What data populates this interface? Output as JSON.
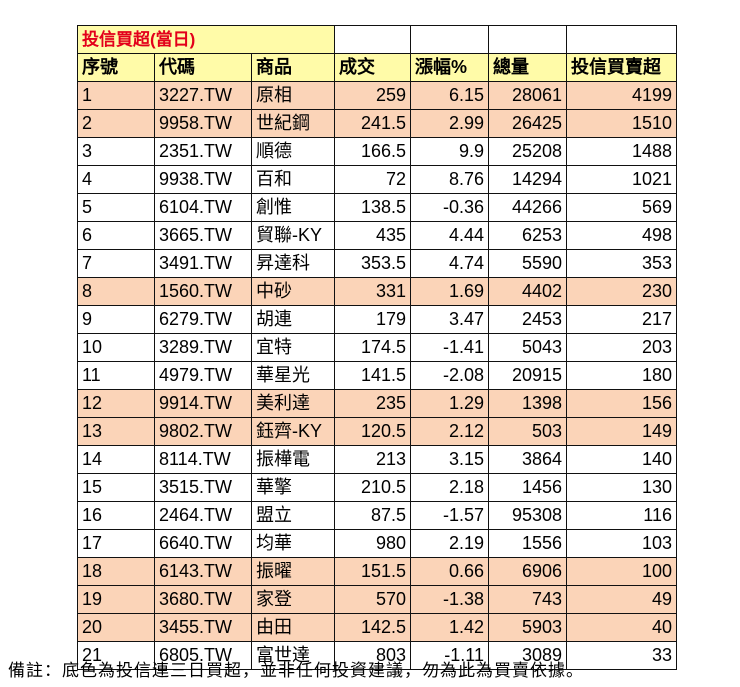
{
  "title": "投信買超(當日)",
  "headers": [
    "序號",
    "代碼",
    "商品",
    "成交",
    "漲幅%",
    "總量",
    "投信買賣超"
  ],
  "colors": {
    "header_bg": "#fffba8",
    "title_text": "#e3001b",
    "highlight_row": "#fbd4b8"
  },
  "rows": [
    {
      "no": "1",
      "code": "3227.TW",
      "name": "原相",
      "price": "259",
      "change": "6.15",
      "volume": "28061",
      "net": "4199",
      "highlight": true
    },
    {
      "no": "2",
      "code": "9958.TW",
      "name": "世紀鋼",
      "price": "241.5",
      "change": "2.99",
      "volume": "26425",
      "net": "1510",
      "highlight": true
    },
    {
      "no": "3",
      "code": "2351.TW",
      "name": "順德",
      "price": "166.5",
      "change": "9.9",
      "volume": "25208",
      "net": "1488",
      "highlight": false
    },
    {
      "no": "4",
      "code": "9938.TW",
      "name": "百和",
      "price": "72",
      "change": "8.76",
      "volume": "14294",
      "net": "1021",
      "highlight": false
    },
    {
      "no": "5",
      "code": "6104.TW",
      "name": "創惟",
      "price": "138.5",
      "change": "-0.36",
      "volume": "44266",
      "net": "569",
      "highlight": false
    },
    {
      "no": "6",
      "code": "3665.TW",
      "name": "貿聯-KY",
      "price": "435",
      "change": "4.44",
      "volume": "6253",
      "net": "498",
      "highlight": false
    },
    {
      "no": "7",
      "code": "3491.TW",
      "name": "昇達科",
      "price": "353.5",
      "change": "4.74",
      "volume": "5590",
      "net": "353",
      "highlight": false
    },
    {
      "no": "8",
      "code": "1560.TW",
      "name": "中砂",
      "price": "331",
      "change": "1.69",
      "volume": "4402",
      "net": "230",
      "highlight": true
    },
    {
      "no": "9",
      "code": "6279.TW",
      "name": "胡連",
      "price": "179",
      "change": "3.47",
      "volume": "2453",
      "net": "217",
      "highlight": false
    },
    {
      "no": "10",
      "code": "3289.TW",
      "name": "宜特",
      "price": "174.5",
      "change": "-1.41",
      "volume": "5043",
      "net": "203",
      "highlight": false
    },
    {
      "no": "11",
      "code": "4979.TW",
      "name": "華星光",
      "price": "141.5",
      "change": "-2.08",
      "volume": "20915",
      "net": "180",
      "highlight": false
    },
    {
      "no": "12",
      "code": "9914.TW",
      "name": "美利達",
      "price": "235",
      "change": "1.29",
      "volume": "1398",
      "net": "156",
      "highlight": true
    },
    {
      "no": "13",
      "code": "9802.TW",
      "name": "鈺齊-KY",
      "price": "120.5",
      "change": "2.12",
      "volume": "503",
      "net": "149",
      "highlight": true
    },
    {
      "no": "14",
      "code": "8114.TW",
      "name": "振樺電",
      "price": "213",
      "change": "3.15",
      "volume": "3864",
      "net": "140",
      "highlight": false
    },
    {
      "no": "15",
      "code": "3515.TW",
      "name": "華擎",
      "price": "210.5",
      "change": "2.18",
      "volume": "1456",
      "net": "130",
      "highlight": false
    },
    {
      "no": "16",
      "code": "2464.TW",
      "name": "盟立",
      "price": "87.5",
      "change": "-1.57",
      "volume": "95308",
      "net": "116",
      "highlight": false
    },
    {
      "no": "17",
      "code": "6640.TW",
      "name": "均華",
      "price": "980",
      "change": "2.19",
      "volume": "1556",
      "net": "103",
      "highlight": false
    },
    {
      "no": "18",
      "code": "6143.TW",
      "name": "振曜",
      "price": "151.5",
      "change": "0.66",
      "volume": "6906",
      "net": "100",
      "highlight": true
    },
    {
      "no": "19",
      "code": "3680.TW",
      "name": "家登",
      "price": "570",
      "change": "-1.38",
      "volume": "743",
      "net": "49",
      "highlight": true
    },
    {
      "no": "20",
      "code": "3455.TW",
      "name": "由田",
      "price": "142.5",
      "change": "1.42",
      "volume": "5903",
      "net": "40",
      "highlight": true
    },
    {
      "no": "21",
      "code": "6805.TW",
      "name": "富世達",
      "price": "803",
      "change": "-1.11",
      "volume": "3089",
      "net": "33",
      "highlight": false
    }
  ],
  "footnote": "備註：底色為投信連三日買超，並非任何投資建議，勿為此為買賣依據。"
}
